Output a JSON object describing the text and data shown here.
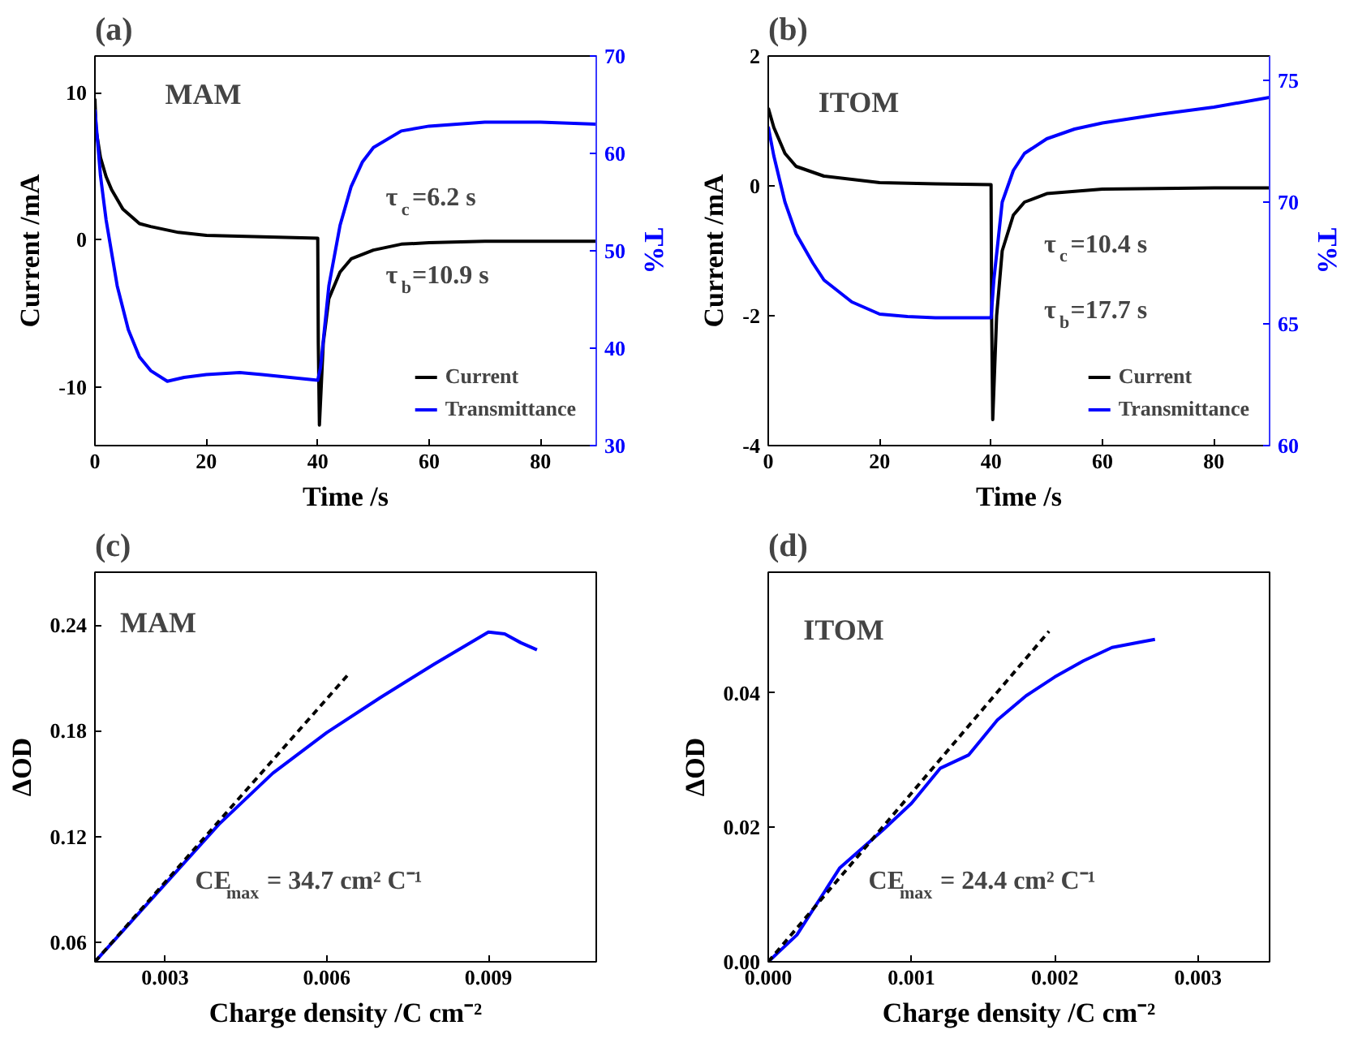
{
  "chart_data": [
    {
      "type": "line",
      "title": "(a)",
      "xlabel": "Time /s",
      "ylabel": "Current /mA",
      "y2label": "T%",
      "xlim": [
        0,
        90
      ],
      "xticks": [
        0,
        20,
        40,
        60,
        80
      ],
      "ylim": [
        -14,
        12.5
      ],
      "yticks": [
        -10,
        0,
        10
      ],
      "y2lim": [
        30,
        70
      ],
      "y2ticks": [
        30,
        40,
        50,
        60,
        70
      ],
      "legend": "bottom right",
      "annotations": [
        "MAM",
        "τ$_{c}$=6.2 s",
        "τ$_{b}$=10.9 s"
      ],
      "series": [
        {
          "name": "Current",
          "color": "#000000",
          "x": [
            0,
            0.2,
            1,
            2,
            3,
            5,
            8,
            10,
            15,
            20,
            30,
            40,
            40.1,
            40.3,
            41,
            42,
            44,
            46,
            50,
            55,
            60,
            70,
            80,
            90
          ],
          "values": [
            9.6,
            7.5,
            5.6,
            4.3,
            3.4,
            2.1,
            1.1,
            0.9,
            0.5,
            0.3,
            0.2,
            0.1,
            -7,
            -12.6,
            -7,
            -4,
            -2.2,
            -1.3,
            -0.7,
            -0.3,
            -0.2,
            -0.1,
            -0.1,
            -0.1
          ]
        },
        {
          "name": "Transmittance",
          "color": "#0000ff",
          "axis": "y2",
          "x": [
            0,
            1,
            2,
            4,
            6,
            8,
            10,
            13,
            16,
            20,
            26,
            30,
            35,
            40,
            40.5,
            42,
            44,
            46,
            48,
            50,
            55,
            60,
            70,
            80,
            90
          ],
          "values": [
            64.5,
            57.7,
            53.2,
            46.4,
            41.9,
            39.1,
            37.7,
            36.6,
            37.0,
            37.3,
            37.5,
            37.3,
            37.0,
            36.7,
            38,
            46.4,
            52.6,
            56.6,
            59.1,
            60.6,
            62.3,
            62.8,
            63.2,
            63.2,
            63.0
          ]
        }
      ]
    },
    {
      "type": "line",
      "title": "(b)",
      "xlabel": "Time /s",
      "ylabel": "Current /mA",
      "y2label": "T%",
      "xlim": [
        0,
        90
      ],
      "xticks": [
        0,
        20,
        40,
        60,
        80
      ],
      "ylim": [
        -4,
        2
      ],
      "yticks": [
        -4,
        -2,
        0,
        2
      ],
      "y2lim": [
        60,
        76
      ],
      "y2ticks": [
        60,
        65,
        70,
        75
      ],
      "legend": "bottom right",
      "annotations": [
        "ITOM",
        "τ$_{c}$=10.4 s",
        "τ$_{b}$=17.7 s"
      ],
      "series": [
        {
          "name": "Current",
          "color": "#000000",
          "x": [
            0,
            1,
            3,
            5,
            10,
            20,
            30,
            40,
            40.1,
            40.3,
            41,
            42,
            44,
            46,
            50,
            60,
            70,
            80,
            90
          ],
          "values": [
            1.2,
            0.9,
            0.5,
            0.3,
            0.15,
            0.05,
            0.03,
            0.02,
            -2,
            -3.6,
            -2.0,
            -1.0,
            -0.45,
            -0.25,
            -0.12,
            -0.05,
            -0.04,
            -0.03,
            -0.03
          ]
        },
        {
          "name": "Transmittance",
          "color": "#0000ff",
          "axis": "y2",
          "x": [
            0,
            1,
            3,
            5,
            8,
            10,
            15,
            20,
            25,
            30,
            40,
            40.5,
            42,
            44,
            46,
            50,
            55,
            60,
            70,
            80,
            90
          ],
          "values": [
            73.1,
            71.9,
            70,
            68.7,
            67.5,
            66.8,
            65.9,
            65.4,
            65.3,
            65.25,
            65.25,
            66.8,
            70,
            71.3,
            72.0,
            72.6,
            73.0,
            73.25,
            73.6,
            73.9,
            74.3
          ]
        }
      ]
    },
    {
      "type": "line",
      "title": "(c)",
      "xlabel": "Charge density /C cm⁻²",
      "ylabel": "ΔOD",
      "xlim": [
        0.0017,
        0.011
      ],
      "xticks": [
        0.003,
        0.006,
        0.009
      ],
      "ylim": [
        0.049,
        0.27
      ],
      "yticks": [
        0.06,
        0.12,
        0.18,
        0.24
      ],
      "annotations": [
        "MAM",
        "CE$_{max}$ = 34.7 cm² C⁻¹"
      ],
      "series": [
        {
          "color": "#0000ff",
          "x": [
            0.0017,
            0.003,
            0.004,
            0.005,
            0.006,
            0.007,
            0.008,
            0.009,
            0.0093,
            0.0096,
            0.0099
          ],
          "values": [
            0.049,
            0.093,
            0.127,
            0.156,
            0.179,
            0.199,
            0.218,
            0.236,
            0.235,
            0.23,
            0.226
          ]
        },
        {
          "color": "#000000",
          "line_style": "dashed",
          "x": [
            0.0017,
            0.0064
          ],
          "values": [
            0.049,
            0.212
          ]
        }
      ]
    },
    {
      "type": "line",
      "title": "(d)",
      "xlabel": "Charge density /C cm⁻²",
      "ylabel": "ΔOD",
      "xlim": [
        0,
        0.0035
      ],
      "xticks": [
        {
          "value": 0,
          "label": "0.000"
        },
        0.001,
        0.002,
        0.003
      ],
      "ylim": [
        0,
        0.058
      ],
      "yticks": [
        {
          "value": 0,
          "label": "0.00"
        },
        0.02,
        0.04
      ],
      "annotations": [
        "ITOM",
        "CE$_{max}$ = 24.4 cm² C⁻¹"
      ],
      "series": [
        {
          "color": "#0000ff",
          "x": [
            0,
            0.0002,
            0.0005,
            0.0008,
            0.001,
            0.0012,
            0.0014,
            0.0016,
            0.0018,
            0.002,
            0.0022,
            0.0024,
            0.0026,
            0.0027
          ],
          "values": [
            0,
            0.004,
            0.014,
            0.0196,
            0.0236,
            0.0288,
            0.0308,
            0.036,
            0.0396,
            0.0424,
            0.0448,
            0.0468,
            0.0476,
            0.048
          ]
        },
        {
          "color": "#000000",
          "line_style": "dashed",
          "x": [
            0,
            0.00196
          ],
          "values": [
            0,
            0.0492
          ]
        }
      ]
    }
  ]
}
